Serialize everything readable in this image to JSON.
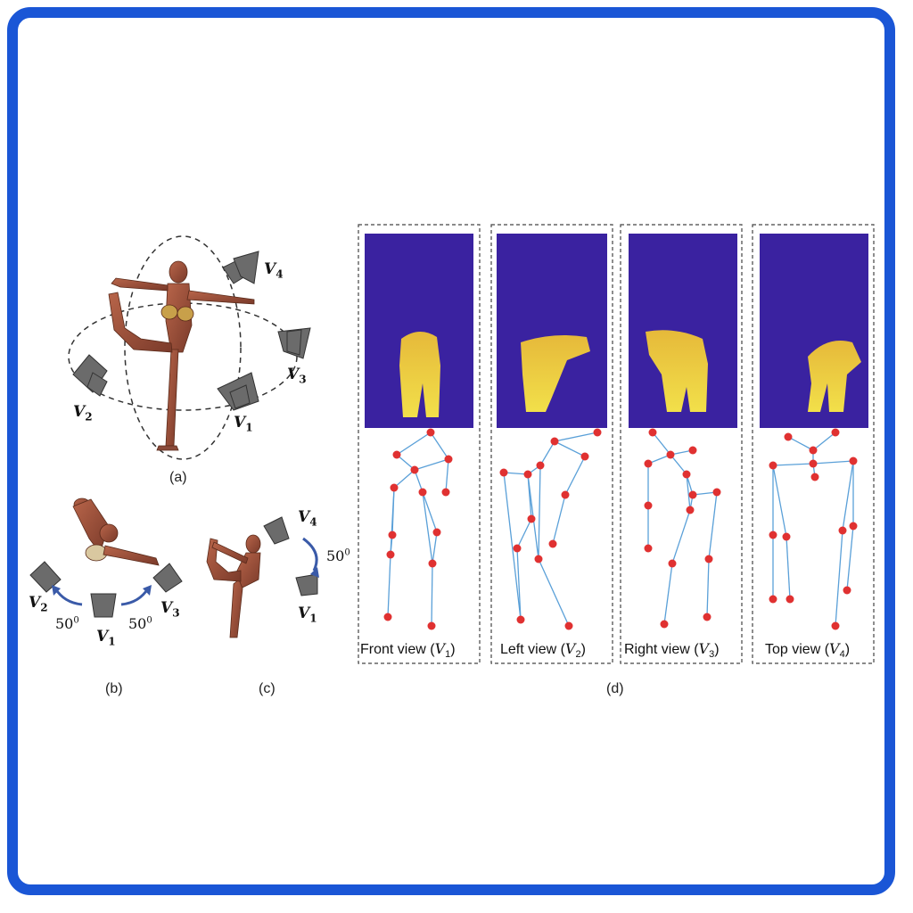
{
  "panel_labels": {
    "a": "(a)",
    "b": "(b)",
    "c": "(c)",
    "d": "(d)"
  },
  "camera_labels": {
    "a": {
      "v1": "V",
      "v1_sub": "1",
      "v2": "V",
      "v2_sub": "2",
      "v3": "V",
      "v3_sub": "3",
      "v4": "V",
      "v4_sub": "4"
    },
    "b": {
      "v1": "V",
      "v1_sub": "1",
      "v2": "V",
      "v2_sub": "2",
      "v3": "V",
      "v3_sub": "3"
    },
    "c": {
      "v1": "V",
      "v1_sub": "1",
      "v4": "V",
      "v4_sub": "4"
    }
  },
  "angle_labels": {
    "b_left": "50",
    "b_right": "50",
    "c": "50",
    "sup": "0"
  },
  "views": [
    {
      "caption": "Front view (",
      "var": "V",
      "sub": "1",
      "close": ")"
    },
    {
      "caption": "Left view (",
      "var": "V",
      "sub": "2",
      "close": ")"
    },
    {
      "caption": "Right view (",
      "var": "V",
      "sub": "3",
      "close": ")"
    },
    {
      "caption": "Top view (",
      "var": "V",
      "sub": "4",
      "close": ")"
    }
  ],
  "colors": {
    "border": "#1a56d6",
    "depth_bg": "#3a22a0",
    "joint": "#e03131",
    "bone": "#5aa0d8",
    "arrow": "#3a5aa8"
  }
}
